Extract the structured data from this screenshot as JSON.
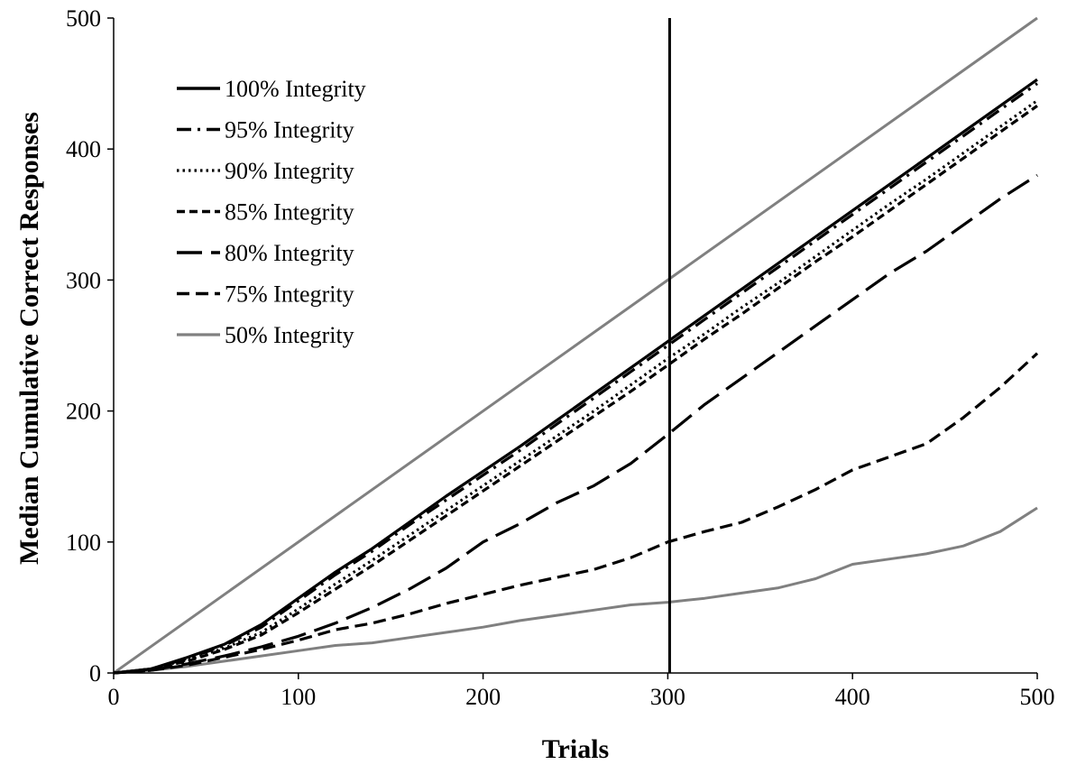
{
  "chart_data": {
    "type": "line",
    "title": "",
    "xlabel": "Trials",
    "ylabel": "Median Cumulative Correct Responses",
    "xlim": [
      0,
      500
    ],
    "ylim": [
      0,
      500
    ],
    "xticks": [
      0,
      100,
      200,
      300,
      400,
      500
    ],
    "yticks": [
      0,
      100,
      200,
      300,
      400,
      500
    ],
    "grid": false,
    "legend_position": "top-left",
    "vertical_reference_line": {
      "x": 301
    },
    "series": [
      {
        "name": "100% Integrity",
        "color": "#000000",
        "dash": "solid",
        "points": [
          [
            0,
            0
          ],
          [
            20,
            3
          ],
          [
            40,
            12
          ],
          [
            60,
            22
          ],
          [
            80,
            37
          ],
          [
            100,
            57
          ],
          [
            120,
            77
          ],
          [
            140,
            95
          ],
          [
            160,
            115
          ],
          [
            180,
            135
          ],
          [
            200,
            154
          ],
          [
            220,
            173
          ],
          [
            240,
            193
          ],
          [
            260,
            213
          ],
          [
            280,
            233
          ],
          [
            300,
            253
          ],
          [
            320,
            273
          ],
          [
            340,
            293
          ],
          [
            360,
            313
          ],
          [
            380,
            333
          ],
          [
            400,
            353
          ],
          [
            420,
            373
          ],
          [
            440,
            393
          ],
          [
            460,
            413
          ],
          [
            480,
            433
          ],
          [
            500,
            453
          ]
        ]
      },
      {
        "name": "95% Integrity",
        "color": "#000000",
        "dash": "dash-dot",
        "points": [
          [
            0,
            0
          ],
          [
            20,
            3
          ],
          [
            40,
            11
          ],
          [
            60,
            21
          ],
          [
            80,
            35
          ],
          [
            100,
            55
          ],
          [
            120,
            75
          ],
          [
            140,
            93
          ],
          [
            160,
            113
          ],
          [
            180,
            132
          ],
          [
            200,
            151
          ],
          [
            220,
            170
          ],
          [
            240,
            190
          ],
          [
            260,
            210
          ],
          [
            280,
            230
          ],
          [
            300,
            250
          ],
          [
            320,
            270
          ],
          [
            340,
            290
          ],
          [
            360,
            310
          ],
          [
            380,
            330
          ],
          [
            400,
            350
          ],
          [
            420,
            370
          ],
          [
            440,
            390
          ],
          [
            460,
            410
          ],
          [
            480,
            430
          ],
          [
            500,
            450
          ]
        ]
      },
      {
        "name": "90% Integrity",
        "color": "#000000",
        "dash": "dotted",
        "points": [
          [
            0,
            0
          ],
          [
            20,
            3
          ],
          [
            40,
            10
          ],
          [
            60,
            19
          ],
          [
            80,
            31
          ],
          [
            100,
            49
          ],
          [
            120,
            68
          ],
          [
            140,
            86
          ],
          [
            160,
            105
          ],
          [
            180,
            124
          ],
          [
            200,
            143
          ],
          [
            220,
            162
          ],
          [
            240,
            181
          ],
          [
            260,
            200
          ],
          [
            280,
            220
          ],
          [
            300,
            240
          ],
          [
            320,
            259
          ],
          [
            340,
            279
          ],
          [
            360,
            298
          ],
          [
            380,
            318
          ],
          [
            400,
            338
          ],
          [
            420,
            358
          ],
          [
            440,
            377
          ],
          [
            460,
            397
          ],
          [
            480,
            417
          ],
          [
            500,
            437
          ]
        ]
      },
      {
        "name": "85% Integrity",
        "color": "#000000",
        "dash": "short-dash",
        "points": [
          [
            0,
            0
          ],
          [
            20,
            3
          ],
          [
            40,
            9
          ],
          [
            60,
            18
          ],
          [
            80,
            29
          ],
          [
            100,
            46
          ],
          [
            120,
            64
          ],
          [
            140,
            82
          ],
          [
            160,
            101
          ],
          [
            180,
            120
          ],
          [
            200,
            139
          ],
          [
            220,
            158
          ],
          [
            240,
            177
          ],
          [
            260,
            196
          ],
          [
            280,
            215
          ],
          [
            300,
            235
          ],
          [
            320,
            255
          ],
          [
            340,
            274
          ],
          [
            360,
            294
          ],
          [
            380,
            314
          ],
          [
            400,
            333
          ],
          [
            420,
            353
          ],
          [
            440,
            373
          ],
          [
            460,
            393
          ],
          [
            480,
            413
          ],
          [
            500,
            433
          ]
        ]
      },
      {
        "name": "80% Integrity",
        "color": "#000000",
        "dash": "long-dash",
        "points": [
          [
            0,
            0
          ],
          [
            20,
            2
          ],
          [
            40,
            7
          ],
          [
            60,
            13
          ],
          [
            80,
            20
          ],
          [
            100,
            28
          ],
          [
            120,
            38
          ],
          [
            140,
            50
          ],
          [
            160,
            64
          ],
          [
            180,
            80
          ],
          [
            200,
            100
          ],
          [
            220,
            114
          ],
          [
            240,
            130
          ],
          [
            260,
            143
          ],
          [
            280,
            160
          ],
          [
            300,
            182
          ],
          [
            320,
            205
          ],
          [
            340,
            225
          ],
          [
            360,
            245
          ],
          [
            380,
            265
          ],
          [
            400,
            285
          ],
          [
            420,
            305
          ],
          [
            440,
            322
          ],
          [
            460,
            342
          ],
          [
            480,
            362
          ],
          [
            500,
            380
          ]
        ]
      },
      {
        "name": "75% Integrity",
        "color": "#000000",
        "dash": "medium-dash",
        "points": [
          [
            0,
            0
          ],
          [
            20,
            2
          ],
          [
            40,
            6
          ],
          [
            60,
            12
          ],
          [
            80,
            18
          ],
          [
            100,
            25
          ],
          [
            120,
            33
          ],
          [
            140,
            38
          ],
          [
            160,
            45
          ],
          [
            180,
            53
          ],
          [
            200,
            60
          ],
          [
            220,
            67
          ],
          [
            240,
            73
          ],
          [
            260,
            79
          ],
          [
            280,
            88
          ],
          [
            300,
            100
          ],
          [
            320,
            108
          ],
          [
            340,
            115
          ],
          [
            360,
            127
          ],
          [
            380,
            140
          ],
          [
            400,
            155
          ],
          [
            420,
            165
          ],
          [
            440,
            175
          ],
          [
            460,
            195
          ],
          [
            480,
            218
          ],
          [
            500,
            244
          ]
        ]
      },
      {
        "name": "50% Integrity",
        "color": "#808080",
        "dash": "solid",
        "points": [
          [
            0,
            0
          ],
          [
            20,
            2
          ],
          [
            40,
            5
          ],
          [
            60,
            9
          ],
          [
            80,
            13
          ],
          [
            100,
            17
          ],
          [
            120,
            21
          ],
          [
            140,
            23
          ],
          [
            160,
            27
          ],
          [
            180,
            31
          ],
          [
            200,
            35
          ],
          [
            220,
            40
          ],
          [
            240,
            44
          ],
          [
            260,
            48
          ],
          [
            280,
            52
          ],
          [
            300,
            54
          ],
          [
            320,
            57
          ],
          [
            340,
            61
          ],
          [
            360,
            65
          ],
          [
            380,
            72
          ],
          [
            400,
            83
          ],
          [
            420,
            87
          ],
          [
            440,
            91
          ],
          [
            460,
            97
          ],
          [
            480,
            108
          ],
          [
            500,
            126
          ]
        ]
      },
      {
        "name": "",
        "color": "#808080",
        "dash": "solid",
        "points": [
          [
            0,
            0
          ],
          [
            500,
            500
          ]
        ]
      }
    ]
  }
}
